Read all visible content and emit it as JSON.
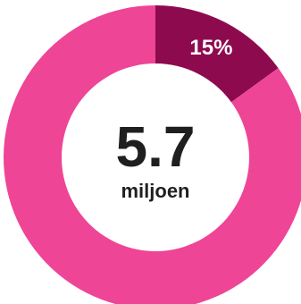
{
  "chart_data": {
    "type": "pie",
    "variant": "donut",
    "categories": [
      "",
      ""
    ],
    "values": [
      15,
      85
    ],
    "colors": [
      "#8e0a4f",
      "#ee4596"
    ],
    "data_labels": [
      "15%",
      ""
    ],
    "center": {
      "value": "5.7",
      "unit": "miljoen"
    }
  }
}
